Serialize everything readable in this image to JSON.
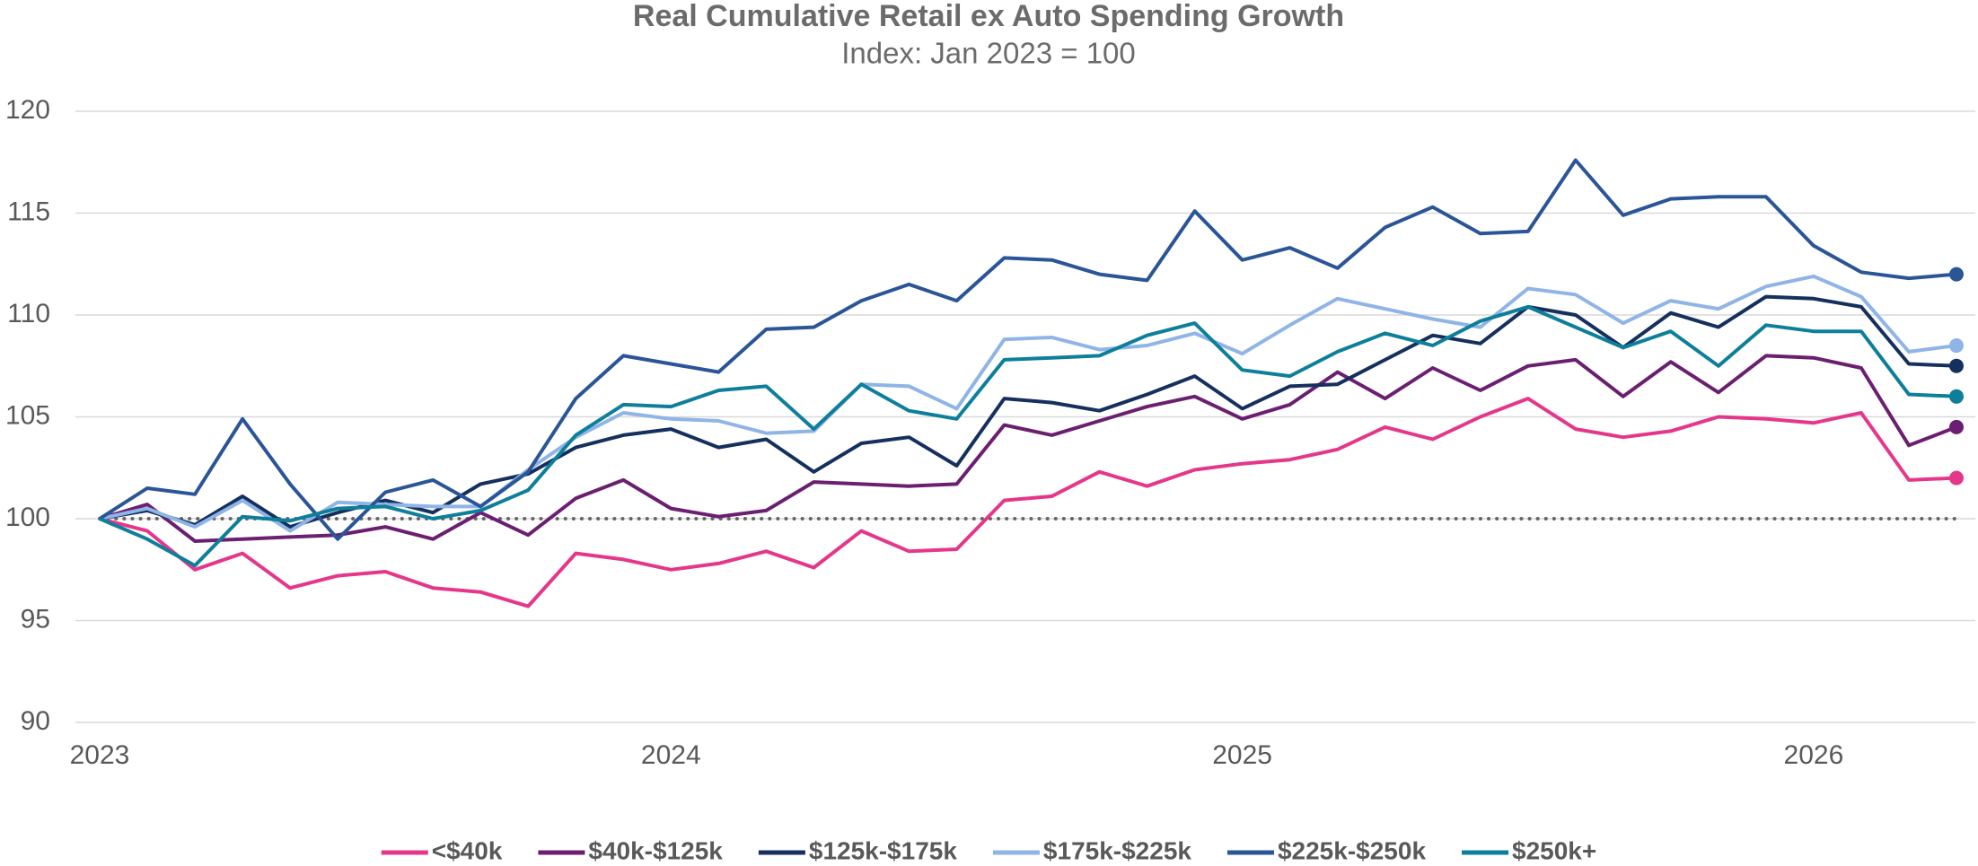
{
  "chart_data": {
    "type": "line",
    "title": "Real Cumulative Retail ex Auto Spending Growth",
    "subtitle": "Index: Jan 2023 = 100",
    "categories": [
      "2023",
      null,
      null,
      null,
      null,
      null,
      null,
      null,
      null,
      null,
      null,
      null,
      "2024",
      null,
      null,
      null,
      null,
      null,
      null,
      null,
      null,
      null,
      null,
      null,
      "2025",
      null,
      null,
      null,
      null,
      null,
      null,
      null,
      null,
      null,
      null,
      null,
      "2026",
      null,
      null,
      null
    ],
    "ylim": [
      90,
      120
    ],
    "yticks": [
      90,
      95,
      100,
      105,
      110,
      115,
      120
    ],
    "grid": true,
    "reference_line": 100,
    "end_markers": true,
    "legend": "bottom",
    "series": [
      {
        "name": "<$40k",
        "color": "#e5378a",
        "values": [
          100,
          99.4,
          97.5,
          98.3,
          96.6,
          97.2,
          97.4,
          96.6,
          96.4,
          95.7,
          98.3,
          98.0,
          97.5,
          97.8,
          98.4,
          97.6,
          99.4,
          98.4,
          98.5,
          100.9,
          101.1,
          102.3,
          101.6,
          102.4,
          102.7,
          102.9,
          103.4,
          104.5,
          103.9,
          105.0,
          105.9,
          104.4,
          104.0,
          104.3,
          105.0,
          104.9,
          104.7,
          105.2,
          101.9,
          102.0
        ]
      },
      {
        "name": "$40k-$125k",
        "color": "#6b1f70",
        "values": [
          100,
          100.7,
          98.9,
          99.0,
          99.1,
          99.2,
          99.6,
          99.0,
          100.3,
          99.2,
          101.0,
          101.9,
          100.5,
          100.1,
          100.4,
          101.8,
          101.7,
          101.6,
          101.7,
          104.6,
          104.1,
          104.8,
          105.5,
          106.0,
          104.9,
          105.6,
          107.2,
          105.9,
          107.4,
          106.3,
          107.5,
          107.8,
          106.0,
          107.7,
          106.2,
          108.0,
          107.9,
          107.4,
          103.6,
          104.5
        ]
      },
      {
        "name": "$125k-$175k",
        "color": "#15305e",
        "values": [
          100,
          100.4,
          99.7,
          101.1,
          99.6,
          100.3,
          100.9,
          100.3,
          101.7,
          102.2,
          103.5,
          104.1,
          104.4,
          103.5,
          103.9,
          102.3,
          103.7,
          104.0,
          102.6,
          105.9,
          105.7,
          105.3,
          106.1,
          107.0,
          105.4,
          106.5,
          106.6,
          107.8,
          109.0,
          108.6,
          110.4,
          110.0,
          108.4,
          110.1,
          109.4,
          110.9,
          110.8,
          110.4,
          107.6,
          107.5
        ]
      },
      {
        "name": "$175k-$225k",
        "color": "#8fb4e6",
        "values": [
          100,
          100.5,
          99.6,
          100.9,
          99.4,
          100.8,
          100.7,
          100.6,
          100.6,
          102.4,
          104.0,
          105.2,
          104.9,
          104.8,
          104.2,
          104.3,
          106.6,
          106.5,
          105.4,
          108.8,
          108.9,
          108.3,
          108.5,
          109.1,
          108.1,
          109.5,
          110.8,
          110.3,
          109.8,
          109.4,
          111.3,
          111.0,
          109.6,
          110.7,
          110.3,
          111.4,
          111.9,
          110.9,
          108.2,
          108.5
        ]
      },
      {
        "name": "$225k-$250k",
        "color": "#2a5597",
        "values": [
          100,
          101.5,
          101.2,
          104.9,
          101.7,
          99.0,
          101.3,
          101.9,
          100.6,
          102.3,
          105.9,
          108.0,
          107.6,
          107.2,
          109.3,
          109.4,
          110.7,
          111.5,
          110.7,
          112.8,
          112.7,
          112.0,
          111.7,
          115.1,
          112.7,
          113.3,
          112.3,
          114.3,
          115.3,
          114.0,
          114.1,
          117.6,
          114.9,
          115.7,
          115.8,
          115.8,
          113.4,
          112.1,
          111.8,
          112.0
        ]
      },
      {
        "name": "$250k+",
        "color": "#0e7f9b",
        "values": [
          100,
          99.0,
          97.7,
          100.1,
          99.9,
          100.5,
          100.6,
          100.0,
          100.4,
          101.4,
          104.1,
          105.6,
          105.5,
          106.3,
          106.5,
          104.4,
          106.6,
          105.3,
          104.9,
          107.8,
          107.9,
          108.0,
          109.0,
          109.6,
          107.3,
          107.0,
          108.2,
          109.1,
          108.5,
          109.7,
          110.4,
          109.4,
          108.4,
          109.2,
          107.5,
          109.5,
          109.2,
          109.2,
          106.1,
          106.0
        ]
      }
    ]
  }
}
